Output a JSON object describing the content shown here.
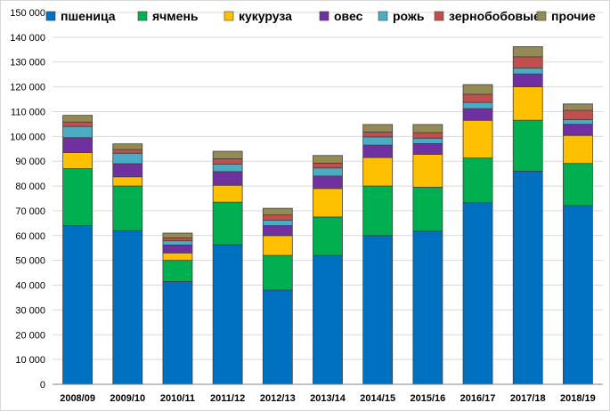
{
  "chart_data": {
    "type": "bar",
    "stacked": true,
    "title": "",
    "xlabel": "",
    "ylabel": "",
    "ylim": [
      0,
      150000
    ],
    "y_ticks": [
      0,
      10000,
      20000,
      30000,
      40000,
      50000,
      60000,
      70000,
      80000,
      90000,
      100000,
      110000,
      120000,
      130000,
      140000,
      150000
    ],
    "y_tick_labels": [
      "0",
      "10 000",
      "20 000",
      "30 000",
      "40 000",
      "50 000",
      "60 000",
      "70 000",
      "80 000",
      "90 000",
      "100 000",
      "110 000",
      "120 000",
      "130 000",
      "140 000",
      "150 000"
    ],
    "grid": true,
    "legend_position": "top",
    "categories": [
      "2008/09",
      "2009/10",
      "2010/11",
      "2011/12",
      "2012/13",
      "2013/14",
      "2014/15",
      "2015/16",
      "2016/17",
      "2017/18",
      "2018/19"
    ],
    "series": [
      {
        "name": "пшеница",
        "color": "#0070C0",
        "values": [
          64000,
          62000,
          41500,
          56300,
          38000,
          52000,
          60000,
          61800,
          73300,
          86000,
          72100
        ]
      },
      {
        "name": "ячмень",
        "color": "#00B050",
        "values": [
          23000,
          18000,
          8500,
          17200,
          14000,
          15500,
          20000,
          17700,
          18000,
          20500,
          17000
        ]
      },
      {
        "name": "кукуруза",
        "color": "#FFC000",
        "values": [
          6500,
          3700,
          3000,
          6800,
          8000,
          11500,
          11500,
          13300,
          15200,
          13500,
          11300
        ]
      },
      {
        "name": "овес",
        "color": "#7030A0",
        "values": [
          6000,
          5300,
          3200,
          5500,
          4000,
          5000,
          5000,
          4300,
          4700,
          5200,
          4500
        ]
      },
      {
        "name": "рожь",
        "color": "#4BACC6",
        "values": [
          4500,
          4200,
          1700,
          3000,
          2200,
          3300,
          3300,
          2200,
          2500,
          2400,
          1900
        ]
      },
      {
        "name": "зернобобовые",
        "color": "#C0504D",
        "values": [
          1800,
          1500,
          1200,
          2200,
          2100,
          1900,
          2000,
          2200,
          3300,
          4500,
          3700
        ]
      },
      {
        "name": "прочие",
        "color": "#948A54",
        "values": [
          2700,
          2300,
          1900,
          3000,
          2700,
          3100,
          3000,
          3300,
          3900,
          4100,
          2600
        ]
      }
    ]
  }
}
